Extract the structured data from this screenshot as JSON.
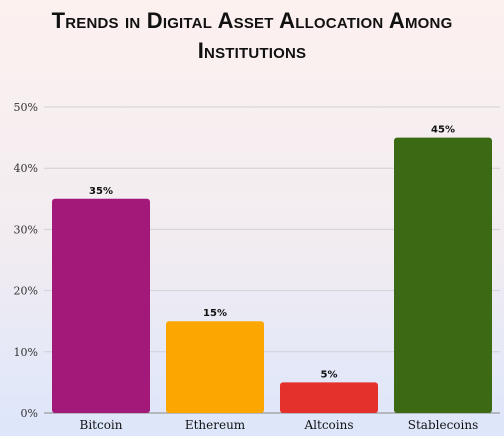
{
  "chart_data": {
    "type": "bar",
    "title_lines": [
      "Trends in Digital Asset Allocation Among",
      "Institutions"
    ],
    "categories": [
      "Bitcoin",
      "Ethereum",
      "Altcoins",
      "Stablecoins"
    ],
    "values": [
      35,
      15,
      5,
      45
    ],
    "data_labels": [
      "35%",
      "15%",
      "5%",
      "45%"
    ],
    "colors": [
      "#a2197a",
      "#fba601",
      "#e5312b",
      "#3c6a14"
    ],
    "yticks": [
      "0%",
      "10%",
      "20%",
      "30%",
      "40%",
      "50%"
    ],
    "ylim": [
      0,
      50
    ],
    "grid": true,
    "legend": "none"
  }
}
